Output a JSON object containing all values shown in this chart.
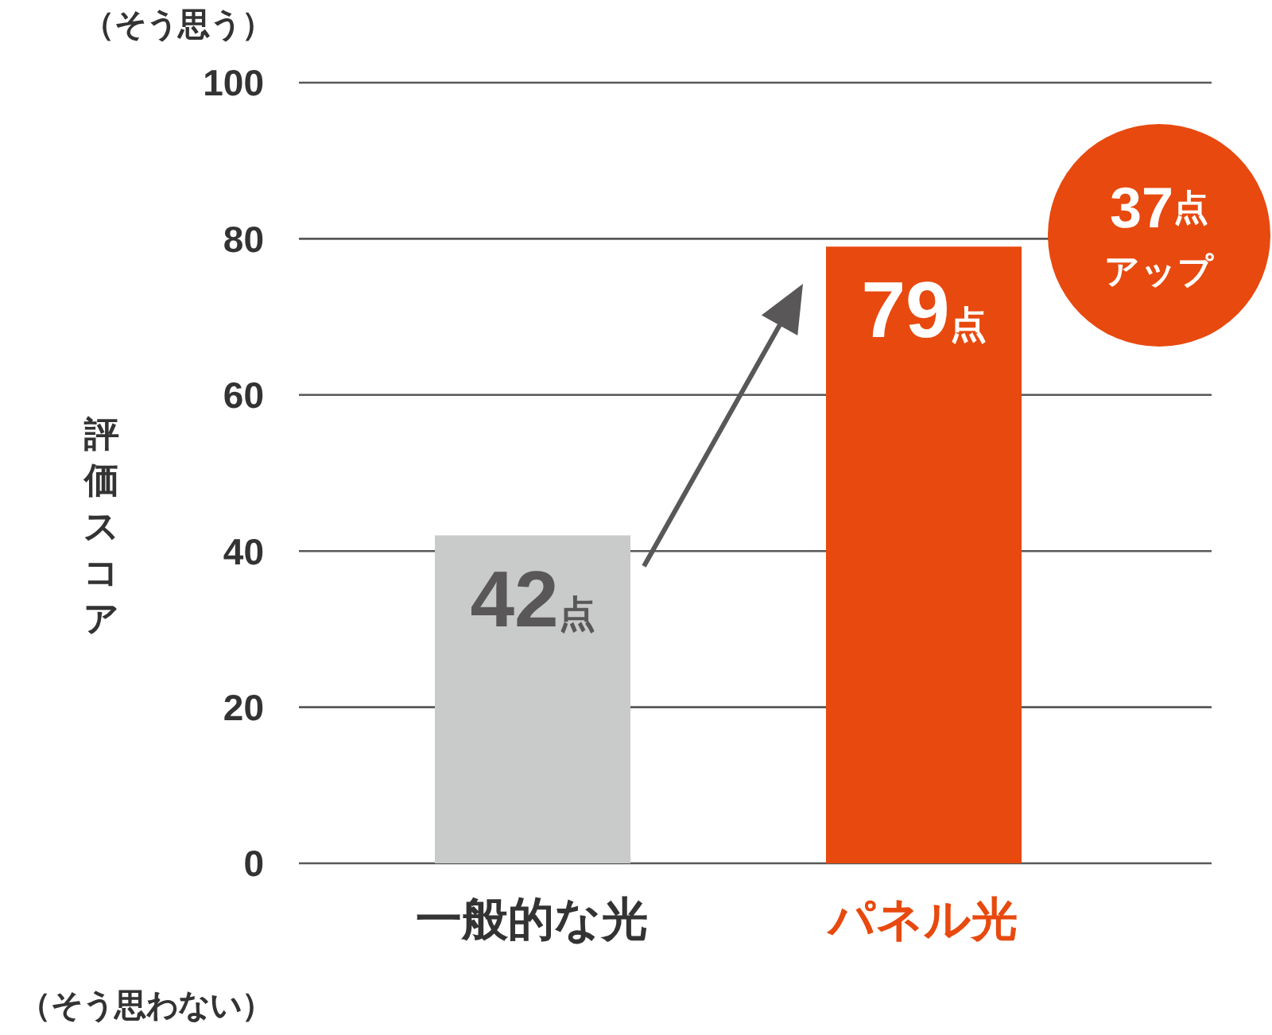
{
  "chart_data": {
    "type": "bar",
    "ylabel": "評価スコア",
    "categories": [
      "一般的な光",
      "パネル光"
    ],
    "values": [
      42,
      79
    ],
    "colors": [
      "#c9caca",
      "#e8490e"
    ],
    "value_labels": [
      "42点",
      "79点"
    ],
    "ylim": [
      0,
      100
    ],
    "yticks": [
      0,
      20,
      40,
      60,
      80,
      100
    ],
    "grid": "y",
    "annotations": [
      "（そう思う）",
      "（そう思わない）",
      "37点アップ"
    ]
  }
}
